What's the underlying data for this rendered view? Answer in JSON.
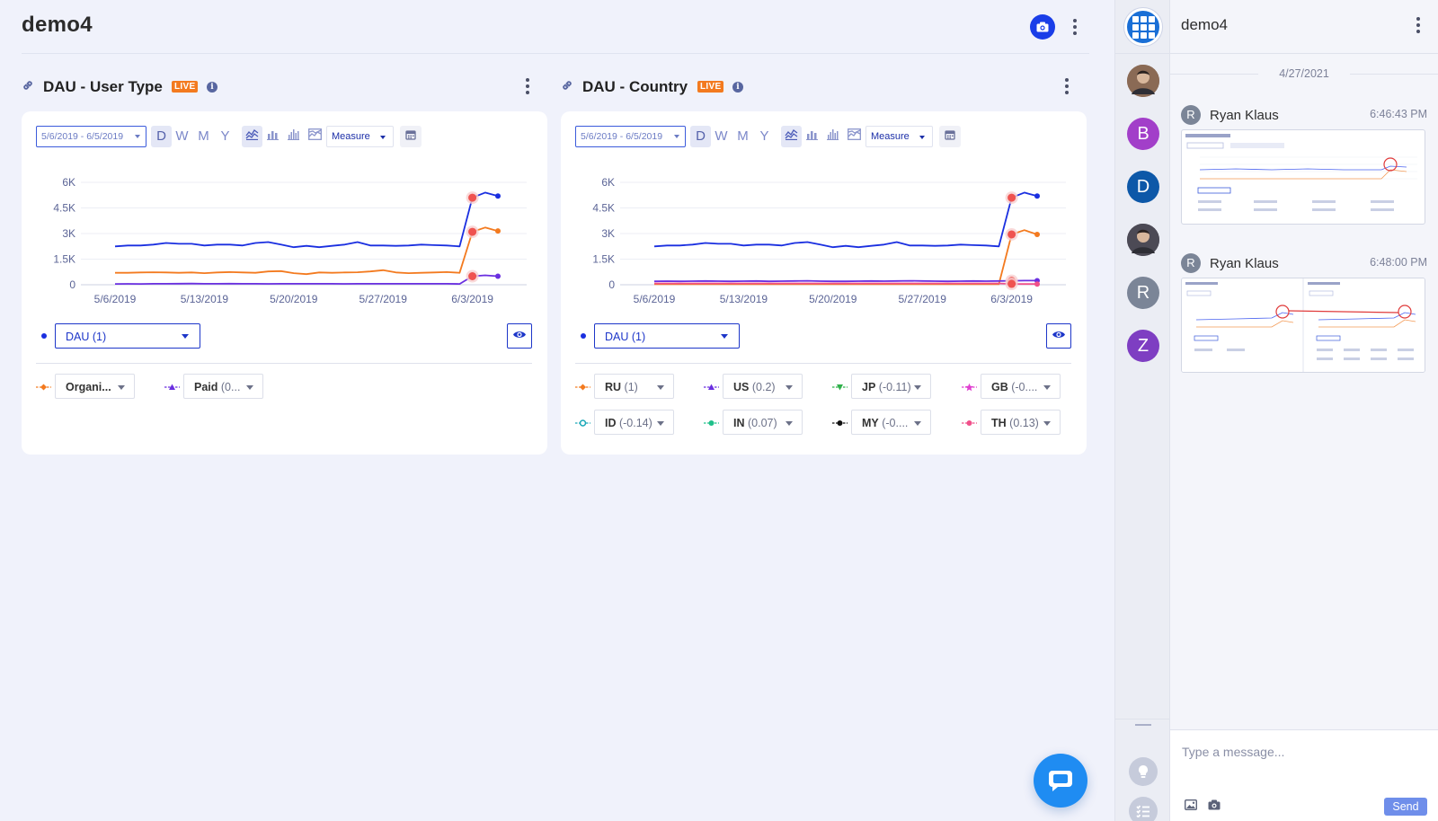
{
  "app": {
    "title": "demo4"
  },
  "panels": [
    {
      "title": "DAU - User Type",
      "live": "LIVE",
      "info": "i",
      "date_range": "5/6/2019 - 6/5/2019",
      "granularity": [
        "D",
        "W",
        "M",
        "Y"
      ],
      "measure": "Measure",
      "metric": "DAU (1)",
      "segments": [
        {
          "name": "Organi...",
          "value": "",
          "color": "#f37a1f",
          "shape": "diamond"
        },
        {
          "name": "Paid",
          "value": "(0...",
          "color": "#6a2fe0",
          "shape": "triangle-up"
        }
      ]
    },
    {
      "title": "DAU - Country",
      "live": "LIVE",
      "info": "i",
      "date_range": "5/6/2019 - 6/5/2019",
      "granularity": [
        "D",
        "W",
        "M",
        "Y"
      ],
      "measure": "Measure",
      "metric": "DAU (1)",
      "segments": [
        {
          "name": "RU",
          "value": "(1)",
          "color": "#f37a1f",
          "shape": "diamond"
        },
        {
          "name": "US",
          "value": "(0.2)",
          "color": "#6a2fe0",
          "shape": "triangle-up"
        },
        {
          "name": "JP",
          "value": "(-0.11)",
          "color": "#2fb04a",
          "shape": "triangle-down"
        },
        {
          "name": "GB",
          "value": "(-0....",
          "color": "#e040d0",
          "shape": "star"
        },
        {
          "name": "ID",
          "value": "(-0.14)",
          "color": "#1aa8b8",
          "shape": "circle-open"
        },
        {
          "name": "IN",
          "value": "(0.07)",
          "color": "#1fc08a",
          "shape": "circle"
        },
        {
          "name": "MY",
          "value": "(-0....",
          "color": "#111111",
          "shape": "circle"
        },
        {
          "name": "TH",
          "value": "(0.13)",
          "color": "#f0508a",
          "shape": "circle"
        }
      ]
    }
  ],
  "chart_data": [
    {
      "type": "line",
      "title": "DAU - User Type",
      "x": [
        "5/6/2019",
        "5/7/2019",
        "5/8/2019",
        "5/9/2019",
        "5/10/2019",
        "5/11/2019",
        "5/12/2019",
        "5/13/2019",
        "5/14/2019",
        "5/15/2019",
        "5/16/2019",
        "5/17/2019",
        "5/18/2019",
        "5/19/2019",
        "5/20/2019",
        "5/21/2019",
        "5/22/2019",
        "5/23/2019",
        "5/24/2019",
        "5/25/2019",
        "5/26/2019",
        "5/27/2019",
        "5/28/2019",
        "5/29/2019",
        "5/30/2019",
        "5/31/2019",
        "6/1/2019",
        "6/2/2019",
        "6/3/2019",
        "6/4/2019",
        "6/5/2019"
      ],
      "x_ticks": [
        "5/6/2019",
        "5/13/2019",
        "5/20/2019",
        "5/27/2019",
        "6/3/2019"
      ],
      "y_ticks": [
        "6K",
        "4.5K",
        "3K",
        "1.5K",
        "0"
      ],
      "ylim": [
        0,
        6000
      ],
      "series": [
        {
          "name": "DAU",
          "color": "#1a2fe0",
          "values": [
            2250,
            2300,
            2300,
            2350,
            2450,
            2400,
            2400,
            2300,
            2350,
            2350,
            2300,
            2450,
            2500,
            2350,
            2200,
            2280,
            2200,
            2280,
            2350,
            2500,
            2300,
            2300,
            2280,
            2300,
            2350,
            2320,
            2300,
            2250,
            5100,
            5400,
            5200
          ]
        },
        {
          "name": "Organic",
          "color": "#f37a1f",
          "values": [
            700,
            700,
            720,
            730,
            720,
            700,
            720,
            680,
            720,
            740,
            720,
            700,
            780,
            800,
            680,
            620,
            720,
            700,
            720,
            730,
            780,
            850,
            720,
            680,
            700,
            720,
            740,
            700,
            3100,
            3350,
            3150
          ]
        },
        {
          "name": "Paid",
          "color": "#6a2fe0",
          "values": [
            50,
            55,
            50,
            60,
            60,
            65,
            70,
            60,
            60,
            65,
            60,
            60,
            55,
            60,
            60,
            60,
            60,
            60,
            55,
            60,
            60,
            60,
            60,
            60,
            60,
            60,
            60,
            50,
            500,
            550,
            500
          ]
        }
      ],
      "highlights": [
        28
      ]
    },
    {
      "type": "line",
      "title": "DAU - Country",
      "x": [
        "5/6/2019",
        "5/7/2019",
        "5/8/2019",
        "5/9/2019",
        "5/10/2019",
        "5/11/2019",
        "5/12/2019",
        "5/13/2019",
        "5/14/2019",
        "5/15/2019",
        "5/16/2019",
        "5/17/2019",
        "5/18/2019",
        "5/19/2019",
        "5/20/2019",
        "5/21/2019",
        "5/22/2019",
        "5/23/2019",
        "5/24/2019",
        "5/25/2019",
        "5/26/2019",
        "5/27/2019",
        "5/28/2019",
        "5/29/2019",
        "5/30/2019",
        "5/31/2019",
        "6/1/2019",
        "6/2/2019",
        "6/3/2019",
        "6/4/2019",
        "6/5/2019"
      ],
      "x_ticks": [
        "5/6/2019",
        "5/13/2019",
        "5/20/2019",
        "5/27/2019",
        "6/3/2019"
      ],
      "y_ticks": [
        "6K",
        "4.5K",
        "3K",
        "1.5K",
        "0"
      ],
      "ylim": [
        0,
        6000
      ],
      "series": [
        {
          "name": "DAU",
          "color": "#1a2fe0",
          "values": [
            2250,
            2300,
            2300,
            2350,
            2450,
            2400,
            2400,
            2300,
            2350,
            2350,
            2300,
            2450,
            2500,
            2350,
            2200,
            2280,
            2200,
            2280,
            2350,
            2500,
            2300,
            2300,
            2280,
            2300,
            2350,
            2320,
            2300,
            2250,
            5100,
            5400,
            5200
          ]
        },
        {
          "name": "RU",
          "color": "#f37a1f",
          "values": [
            30,
            30,
            30,
            30,
            30,
            30,
            30,
            30,
            30,
            30,
            30,
            30,
            30,
            30,
            30,
            30,
            30,
            30,
            30,
            30,
            30,
            30,
            30,
            30,
            30,
            30,
            30,
            30,
            2950,
            3200,
            2950
          ]
        },
        {
          "name": "US",
          "color": "#6a2fe0",
          "values": [
            200,
            210,
            200,
            210,
            220,
            210,
            200,
            210,
            220,
            200,
            210,
            220,
            230,
            210,
            200,
            200,
            210,
            220,
            210,
            220,
            230,
            220,
            210,
            200,
            210,
            220,
            210,
            220,
            230,
            240,
            240
          ]
        },
        {
          "name": "TH",
          "color": "#f0508a",
          "values": [
            80,
            80,
            80,
            80,
            80,
            80,
            80,
            80,
            80,
            80,
            80,
            80,
            80,
            80,
            80,
            80,
            80,
            80,
            80,
            80,
            80,
            80,
            80,
            80,
            80,
            80,
            80,
            80,
            50,
            40,
            40
          ]
        }
      ],
      "highlights": [
        28
      ]
    }
  ],
  "rail": {
    "avatars": [
      {
        "type": "photo",
        "initial": "",
        "color": "#8a6a55"
      },
      {
        "type": "letter",
        "initial": "B",
        "color": "#a23fc9"
      },
      {
        "type": "letter",
        "initial": "D",
        "color": "#0d58a8"
      },
      {
        "type": "photo",
        "initial": "",
        "color": "#4c4a55"
      },
      {
        "type": "letter",
        "initial": "R",
        "color": "#7b8597"
      },
      {
        "type": "letter",
        "initial": "Z",
        "color": "#7e3ec2"
      }
    ]
  },
  "chat": {
    "title": "demo4",
    "date": "4/27/2021",
    "messages": [
      {
        "initial": "R",
        "author": "Ryan Klaus",
        "time": "6:46:43 PM"
      },
      {
        "initial": "R",
        "author": "Ryan Klaus",
        "time": "6:48:00 PM"
      }
    ],
    "placeholder": "Type a message...",
    "send": "Send"
  }
}
